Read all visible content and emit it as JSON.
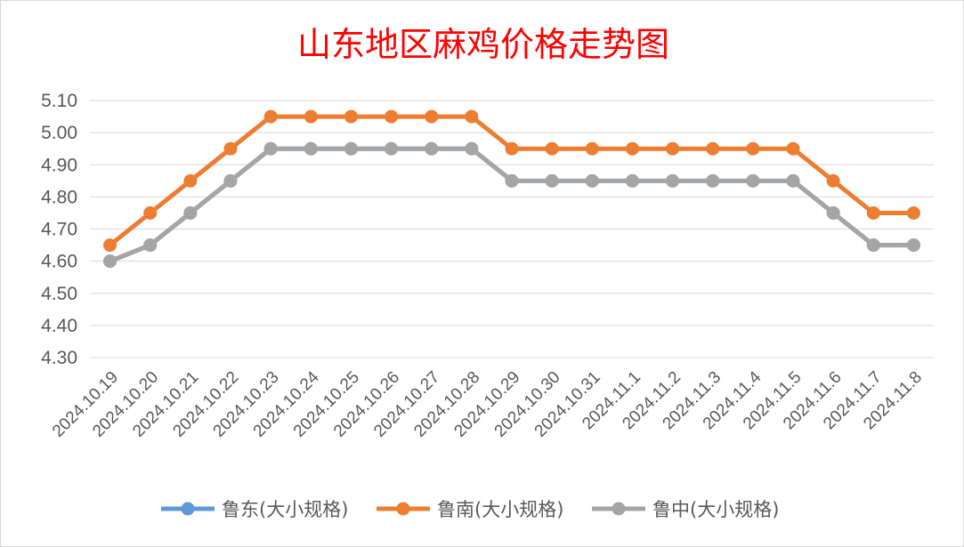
{
  "chart_data": {
    "type": "line",
    "title": "山东地区麻鸡价格走势图",
    "xlabel": "",
    "ylabel": "",
    "categories": [
      "2024.10.19",
      "2024.10.20",
      "2024.10.21",
      "2024.10.22",
      "2024.10.23",
      "2024.10.24",
      "2024.10.25",
      "2024.10.26",
      "2024.10.27",
      "2024.10.28",
      "2024.10.29",
      "2024.10.30",
      "2024.10.31",
      "2024.11.1",
      "2024.11.2",
      "2024.11.3",
      "2024.11.4",
      "2024.11.5",
      "2024.11.6",
      "2024.11.7",
      "2024.11.8"
    ],
    "yticks": [
      "5.10",
      "5.00",
      "4.90",
      "4.80",
      "4.70",
      "4.60",
      "4.50",
      "4.40",
      "4.30"
    ],
    "ylim": [
      4.3,
      5.1
    ],
    "grid": true,
    "legend_position": "bottom",
    "series": [
      {
        "name": "鲁东(大小规格)",
        "color": "#5b9bd5",
        "values": [
          4.6,
          4.65,
          4.75,
          4.85,
          4.95,
          4.95,
          4.95,
          4.95,
          4.95,
          4.95,
          4.85,
          4.85,
          4.85,
          4.85,
          4.85,
          4.85,
          4.85,
          4.85,
          4.75,
          4.65,
          4.65
        ]
      },
      {
        "name": "鲁南(大小规格)",
        "color": "#ed7d31",
        "values": [
          4.65,
          4.75,
          4.85,
          4.95,
          5.05,
          5.05,
          5.05,
          5.05,
          5.05,
          5.05,
          4.95,
          4.95,
          4.95,
          4.95,
          4.95,
          4.95,
          4.95,
          4.95,
          4.85,
          4.75,
          4.75
        ]
      },
      {
        "name": "鲁中(大小规格)",
        "color": "#a5a5a5",
        "values": [
          4.6,
          4.65,
          4.75,
          4.85,
          4.95,
          4.95,
          4.95,
          4.95,
          4.95,
          4.95,
          4.85,
          4.85,
          4.85,
          4.85,
          4.85,
          4.85,
          4.85,
          4.85,
          4.75,
          4.65,
          4.65
        ]
      }
    ]
  }
}
